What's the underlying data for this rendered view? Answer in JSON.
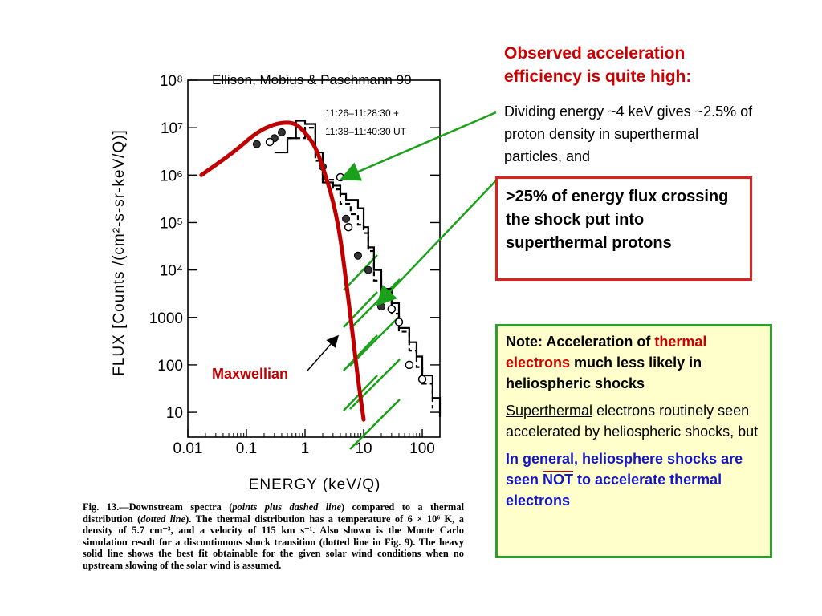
{
  "chart_data": {
    "type": "line",
    "xscale": "log",
    "yscale": "log",
    "xlim": [
      0.01,
      200
    ],
    "ylim": [
      3,
      100000000
    ],
    "xlabel": "ENERGY (keV/Q)",
    "ylabel": "FLUX [Counts /(cm²-s-sr-keV/Q)]",
    "x_ticks": [
      "0.01",
      "0.1",
      "1",
      "10",
      "100"
    ],
    "y_ticks": [
      "10⁸",
      "10⁷",
      "10⁶",
      "10⁵",
      "10⁴",
      "1000",
      "100",
      "10"
    ],
    "legend": [
      "11:26–11:28:30 +",
      "11:38–11:40:30 UT"
    ],
    "series": [
      {
        "name": "Maxwellian",
        "style": "heavy-solid",
        "color": "#c00000",
        "x": [
          0.017,
          0.06,
          0.15,
          0.3,
          0.5,
          0.7,
          1.0,
          1.5,
          2.0,
          3.0,
          4.0,
          5.0,
          6.0,
          7.0,
          8.0,
          10.0
        ],
        "y": [
          1000000,
          3000000,
          8000000,
          12000000,
          13000000,
          12000000,
          8000000,
          4000000,
          1500000,
          300000,
          50000,
          6000,
          1000,
          200,
          50,
          7
        ]
      }
    ],
    "points_filled": {
      "x": [
        0.15,
        0.3,
        0.4,
        2.0,
        4.0,
        5.0,
        8.0,
        12.0,
        20.0
      ],
      "y": [
        4500000,
        6000000,
        8000000,
        1500000,
        900000,
        120000,
        20000,
        10000,
        1700
      ]
    },
    "points_open": {
      "x": [
        0.25,
        4.0,
        5.5,
        30.0,
        40.0,
        60.0,
        100.0
      ],
      "y": [
        5000000,
        900000,
        80000,
        1500,
        800,
        100,
        50
      ]
    },
    "step_solid": {
      "x": [
        0.3,
        0.5,
        0.7,
        1.0,
        1.5,
        2.0,
        3.0,
        4.0,
        5.0,
        6.0,
        8.0,
        10.0,
        12.0,
        15.0,
        20.0,
        30.0,
        40.0,
        60.0,
        80.0,
        100.0,
        150.0,
        200.0
      ],
      "y": [
        3000000,
        6000000,
        14000000,
        12000000,
        3000000,
        700000,
        600000,
        400000,
        300000,
        300000,
        200000,
        80000,
        30000,
        10000,
        4000,
        2000,
        600,
        300,
        150,
        60,
        20,
        8
      ]
    },
    "step_dashed": {
      "x": [
        0.5,
        1.0,
        1.5,
        2.0,
        3.0,
        4.0,
        6.0,
        8.0,
        10.0,
        12.0,
        15.0,
        20.0,
        30.0,
        40.0,
        60.0,
        80.0,
        100.0,
        150.0
      ],
      "y": [
        6000000,
        10000000,
        2000000,
        800000,
        500000,
        250000,
        150000,
        90000,
        60000,
        25000,
        6000,
        2500,
        1200,
        500,
        200,
        90,
        40,
        12
      ]
    }
  },
  "figure": {
    "citation": "Ellison, Mobius & Paschmann 90",
    "maxwellian_label": "Maxwellian",
    "caption": {
      "prefix": "Fig. 13.",
      "dash": "—Downstream spectra (",
      "italic1": "points plus dashed line",
      "mid1": ") compared to a thermal distribution (",
      "italic2": "dotted line",
      "rest": "). The thermal distribution has a temperature of 6 × 10⁶ K, a density of 5.7 cm⁻³, and a velocity of 115 km s⁻¹. Also shown is the Monte Carlo simulation result for a discontinuous shock transition (dotted line in Fig. 9). The heavy solid line shows the best fit obtainable for the given solar wind conditions when no upstream slowing of the solar wind is assumed."
    }
  },
  "text": {
    "heading": "Observed acceleration efficiency is quite high:",
    "dividing": "Dividing energy ~4 keV gives ~2.5% of proton density in superthermal particles, and",
    "redbox": ">25% of energy flux crossing the shock put into superthermal protons",
    "note_label": "Note: Acceleration of ",
    "note_red": "thermal electrons",
    "note_tail": " much less likely in heliospheric shocks",
    "super_underlined": "Superthermal",
    "super_rest": " electrons routinely seen accelerated by heliospheric shocks, but",
    "general1": "In general, heliosphere shocks are seen ",
    "general_not": "NOT",
    "general2": " to accelerate thermal electrons"
  },
  "colors": {
    "accent_red": "#cc0000",
    "arrow_green": "#1aa01a",
    "note_bg": "#ffffcc",
    "note_border": "#2ca02c",
    "redbox_border": "#e0201a",
    "blue_text": "#1515c8"
  }
}
